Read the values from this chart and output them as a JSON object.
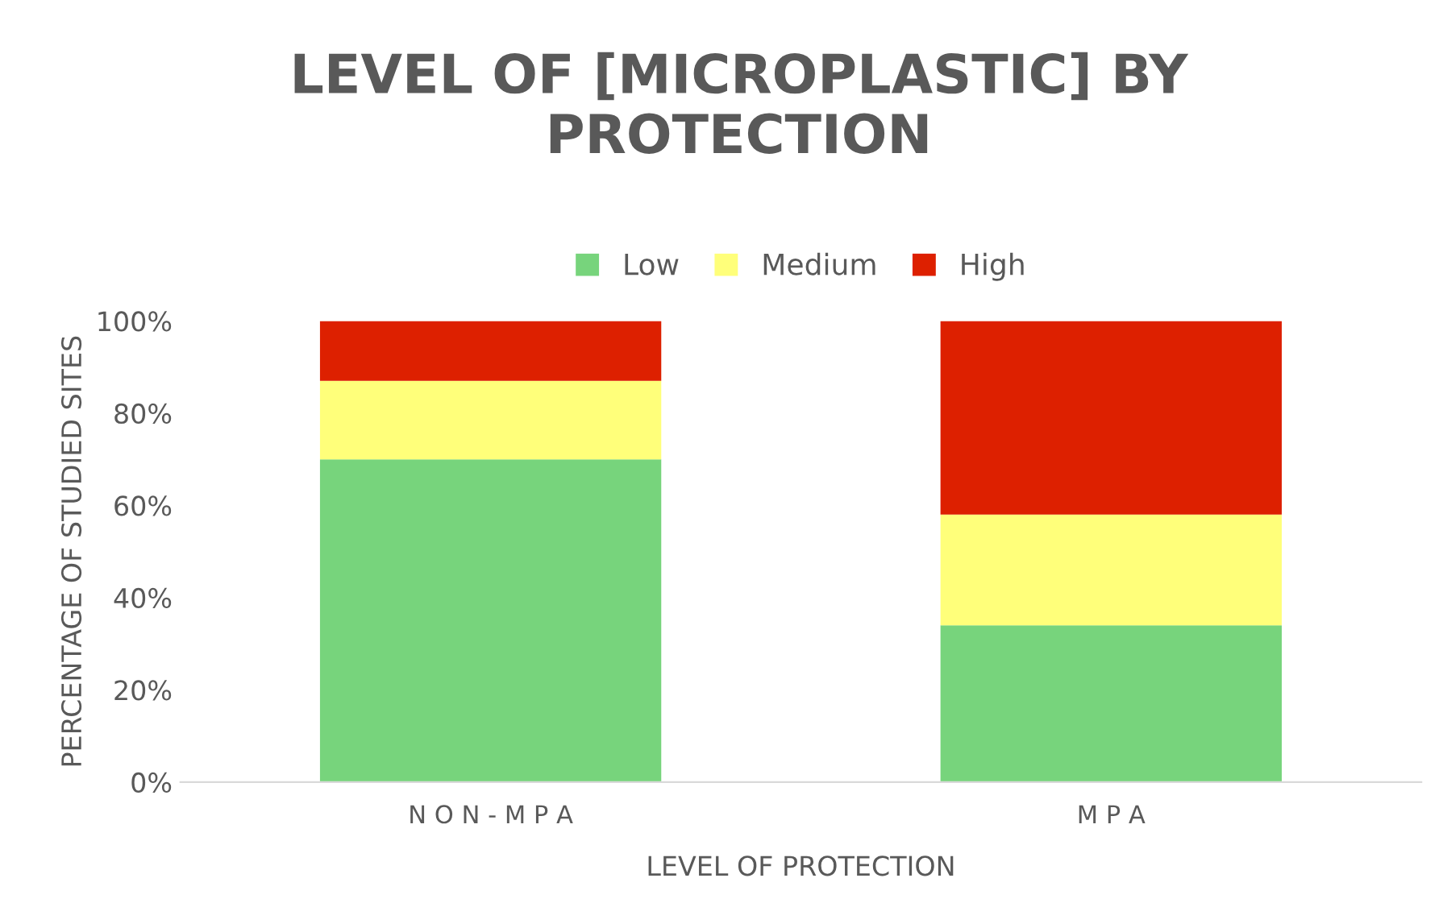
{
  "chart_data": {
    "type": "bar",
    "title": "LEVEL OF [MICROPLASTIC] BY\nPROTECTION",
    "xlabel": "LEVEL OF PROTECTION",
    "ylabel": "PERCENTAGE OF STUDIED SITES",
    "categories": [
      "N O N - M P A",
      "M P A"
    ],
    "stacked": true,
    "series": [
      {
        "name": "Low",
        "color": "#77d47c",
        "values": [
          70,
          34
        ]
      },
      {
        "name": "Medium",
        "color": "#ffff7a",
        "values": [
          17,
          24
        ]
      },
      {
        "name": "High",
        "color": "#dd2000",
        "values": [
          13,
          42
        ]
      }
    ],
    "ylim": [
      0,
      100
    ],
    "yticks": [
      {
        "value": 0,
        "label": "0%"
      },
      {
        "value": 20,
        "label": "20%"
      },
      {
        "value": 40,
        "label": "40%"
      },
      {
        "value": 60,
        "label": "60%"
      },
      {
        "value": 80,
        "label": "80%"
      },
      {
        "value": 100,
        "label": "100%"
      }
    ],
    "legend": "top",
    "grid": false
  }
}
